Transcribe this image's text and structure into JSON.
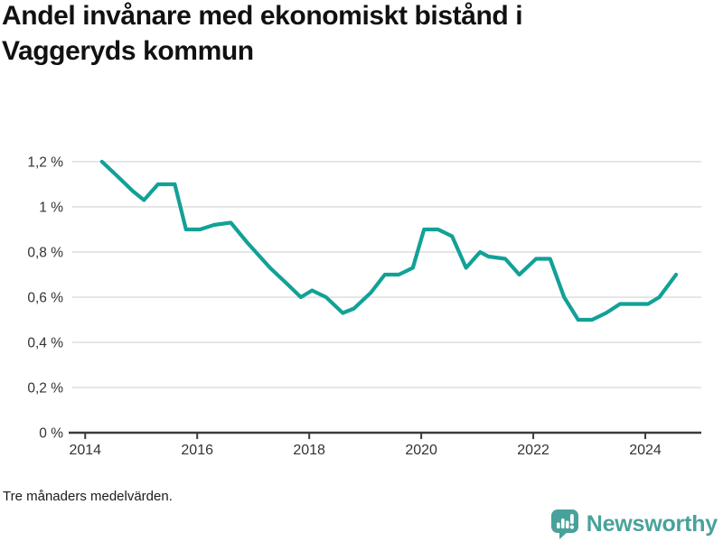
{
  "title": "Andel invånare med ekonomiskt bistånd i Vaggeryds kommun",
  "footnote": "Tre månaders medelvärden.",
  "logo": {
    "text": "Newsworthy",
    "color": "#48a29b"
  },
  "colors": {
    "line": "#12a197",
    "grid": "#dedede",
    "axis": "#3c3c3c",
    "tick_text": "#333333",
    "title_text": "#111111"
  },
  "chart_data": {
    "type": "line",
    "title": "Andel invånare med ekonomiskt bistånd i Vaggeryds kommun",
    "note": "Tre månaders medelvärden.",
    "xlabel": "",
    "ylabel": "",
    "grid": "horizontal",
    "legend": "none",
    "xlim": [
      2013.77,
      2025.0
    ],
    "ylim": [
      0,
      1.3
    ],
    "line_color": "#12a197",
    "x": [
      2014.3,
      2014.6,
      2014.85,
      2015.05,
      2015.3,
      2015.6,
      2015.8,
      2016.05,
      2016.3,
      2016.6,
      2016.9,
      2017.3,
      2017.6,
      2017.85,
      2018.05,
      2018.3,
      2018.6,
      2018.8,
      2019.1,
      2019.35,
      2019.6,
      2019.85,
      2020.05,
      2020.3,
      2020.55,
      2020.8,
      2021.05,
      2021.2,
      2021.5,
      2021.75,
      2022.05,
      2022.3,
      2022.55,
      2022.8,
      2023.05,
      2023.3,
      2023.55,
      2023.8,
      2024.05,
      2024.25,
      2024.55
    ],
    "y": [
      1.2,
      1.13,
      1.07,
      1.03,
      1.1,
      1.1,
      0.9,
      0.9,
      0.92,
      0.93,
      0.84,
      0.73,
      0.66,
      0.6,
      0.63,
      0.6,
      0.53,
      0.55,
      0.62,
      0.7,
      0.7,
      0.73,
      0.9,
      0.9,
      0.87,
      0.73,
      0.8,
      0.78,
      0.77,
      0.7,
      0.77,
      0.77,
      0.6,
      0.5,
      0.5,
      0.53,
      0.57,
      0.57,
      0.57,
      0.6,
      0.7
    ],
    "yticks": [
      {
        "value": 0,
        "label": "0 %"
      },
      {
        "value": 0.2,
        "label": "0,2 %"
      },
      {
        "value": 0.4,
        "label": "0,4 %"
      },
      {
        "value": 0.6,
        "label": "0,6 %"
      },
      {
        "value": 0.8,
        "label": "0,8 %"
      },
      {
        "value": 1.0,
        "label": "1 %"
      },
      {
        "value": 1.2,
        "label": "1,2 %"
      }
    ],
    "xticks": [
      {
        "value": 2014,
        "label": "2014"
      },
      {
        "value": 2016,
        "label": "2016"
      },
      {
        "value": 2018,
        "label": "2018"
      },
      {
        "value": 2020,
        "label": "2020"
      },
      {
        "value": 2022,
        "label": "2022"
      },
      {
        "value": 2024,
        "label": "2024"
      }
    ]
  }
}
